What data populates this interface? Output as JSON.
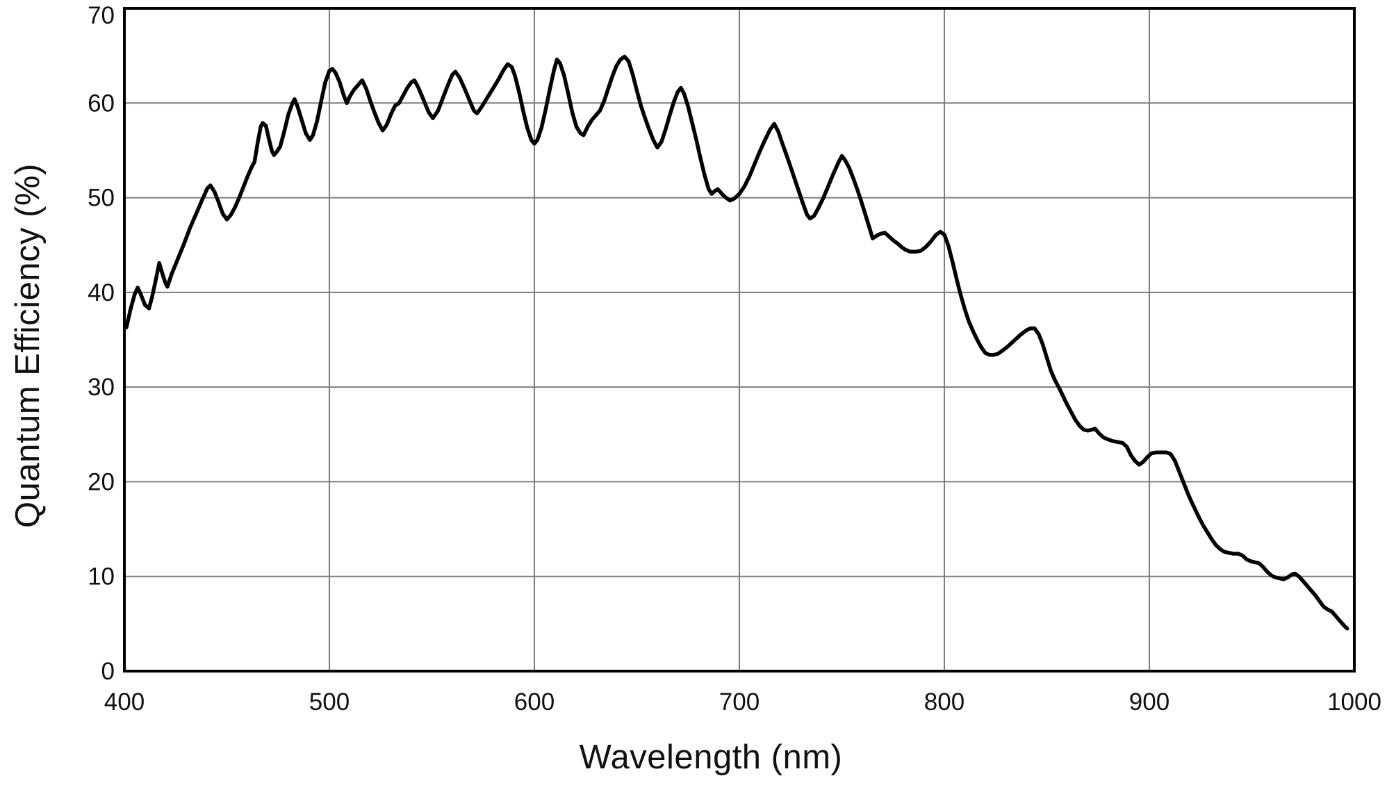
{
  "figure": {
    "background_color": "#ffffff",
    "frame_color": "#000000",
    "grid_color": "#7d7d7d",
    "curve_color": "#000000",
    "text_color": "#111111"
  },
  "chart_data": {
    "type": "line",
    "title": "",
    "xlabel": "Wavelength (nm)",
    "ylabel": "Quantum Efficiency (%)",
    "xlim": [
      400,
      1000
    ],
    "ylim": [
      0,
      70
    ],
    "x_ticks": [
      400,
      500,
      600,
      700,
      800,
      900,
      1000
    ],
    "y_ticks": [
      0,
      10,
      20,
      30,
      40,
      50,
      60,
      70
    ],
    "grid": true,
    "legend": "none",
    "series": [
      {
        "name": "Quantum Efficiency",
        "points": [
          [
            401,
            36.3
          ],
          [
            403,
            38.2
          ],
          [
            405,
            39.8
          ],
          [
            406.5,
            40.5
          ],
          [
            408,
            39.8
          ],
          [
            410,
            38.7
          ],
          [
            412,
            38.3
          ],
          [
            413.5,
            39.5
          ],
          [
            415.5,
            41.5
          ],
          [
            417,
            43.1
          ],
          [
            418.5,
            42.0
          ],
          [
            420,
            41.0
          ],
          [
            421,
            40.6
          ],
          [
            423,
            41.9
          ],
          [
            426,
            43.5
          ],
          [
            429,
            45.1
          ],
          [
            432,
            46.8
          ],
          [
            435,
            48.3
          ],
          [
            438,
            49.8
          ],
          [
            440.5,
            51.0
          ],
          [
            442,
            51.3
          ],
          [
            444,
            50.6
          ],
          [
            446,
            49.5
          ],
          [
            448,
            48.3
          ],
          [
            450,
            47.7
          ],
          [
            452,
            48.2
          ],
          [
            454,
            49.0
          ],
          [
            456,
            50.0
          ],
          [
            458,
            51.1
          ],
          [
            460,
            52.2
          ],
          [
            462,
            53.2
          ],
          [
            463.5,
            53.8
          ],
          [
            465,
            55.8
          ],
          [
            466.5,
            57.5
          ],
          [
            467.5,
            57.9
          ],
          [
            469,
            57.6
          ],
          [
            470.5,
            56.2
          ],
          [
            472,
            54.9
          ],
          [
            473,
            54.5
          ],
          [
            474.5,
            54.9
          ],
          [
            476,
            55.4
          ],
          [
            478,
            57.0
          ],
          [
            480,
            58.8
          ],
          [
            482,
            60.0
          ],
          [
            483,
            60.4
          ],
          [
            484.5,
            59.6
          ],
          [
            486.5,
            58.2
          ],
          [
            488.5,
            56.8
          ],
          [
            490.5,
            56.1
          ],
          [
            492,
            56.6
          ],
          [
            494,
            58.1
          ],
          [
            496,
            60.2
          ],
          [
            498,
            62.2
          ],
          [
            500,
            63.4
          ],
          [
            501.5,
            63.6
          ],
          [
            503,
            63.2
          ],
          [
            505,
            62.2
          ],
          [
            507,
            60.8
          ],
          [
            508.5,
            60.0
          ],
          [
            510,
            60.7
          ],
          [
            512,
            61.4
          ],
          [
            514,
            61.9
          ],
          [
            516,
            62.4
          ],
          [
            518,
            61.5
          ],
          [
            520,
            60.2
          ],
          [
            522,
            59.0
          ],
          [
            524,
            57.9
          ],
          [
            526,
            57.1
          ],
          [
            528,
            57.7
          ],
          [
            530,
            58.8
          ],
          [
            532,
            59.7
          ],
          [
            534,
            60.0
          ],
          [
            536,
            60.8
          ],
          [
            538,
            61.6
          ],
          [
            540,
            62.2
          ],
          [
            541.5,
            62.4
          ],
          [
            543.5,
            61.6
          ],
          [
            546,
            60.3
          ],
          [
            548.5,
            59.0
          ],
          [
            550.5,
            58.4
          ],
          [
            553,
            59.2
          ],
          [
            555.5,
            60.6
          ],
          [
            558,
            62.0
          ],
          [
            560,
            63.0
          ],
          [
            561.5,
            63.3
          ],
          [
            563.5,
            62.7
          ],
          [
            566,
            61.5
          ],
          [
            568.5,
            60.2
          ],
          [
            570.5,
            59.2
          ],
          [
            572,
            58.9
          ],
          [
            574,
            59.5
          ],
          [
            576,
            60.2
          ],
          [
            578,
            60.9
          ],
          [
            580,
            61.6
          ],
          [
            582.5,
            62.5
          ],
          [
            585,
            63.5
          ],
          [
            587,
            64.1
          ],
          [
            589,
            63.8
          ],
          [
            590.5,
            62.9
          ],
          [
            592.5,
            61.2
          ],
          [
            594.5,
            59.2
          ],
          [
            596.5,
            57.4
          ],
          [
            598.5,
            56.1
          ],
          [
            600,
            55.7
          ],
          [
            601.5,
            56.1
          ],
          [
            603.5,
            57.4
          ],
          [
            605.5,
            59.3
          ],
          [
            607.5,
            61.4
          ],
          [
            609.5,
            63.4
          ],
          [
            611,
            64.6
          ],
          [
            612.5,
            64.2
          ],
          [
            614.5,
            62.9
          ],
          [
            616.5,
            61.0
          ],
          [
            618.5,
            59.0
          ],
          [
            620.5,
            57.5
          ],
          [
            622.5,
            56.8
          ],
          [
            624,
            56.6
          ],
          [
            626,
            57.5
          ],
          [
            628,
            58.2
          ],
          [
            630,
            58.7
          ],
          [
            632,
            59.2
          ],
          [
            634,
            60.2
          ],
          [
            636,
            61.5
          ],
          [
            638,
            62.8
          ],
          [
            640,
            63.9
          ],
          [
            642,
            64.6
          ],
          [
            644,
            64.9
          ],
          [
            646,
            64.4
          ],
          [
            648,
            63.0
          ],
          [
            650,
            61.3
          ],
          [
            652,
            59.7
          ],
          [
            654,
            58.4
          ],
          [
            656,
            57.2
          ],
          [
            658,
            56.1
          ],
          [
            660,
            55.3
          ],
          [
            662,
            55.9
          ],
          [
            664,
            57.2
          ],
          [
            666,
            58.7
          ],
          [
            668,
            60.1
          ],
          [
            670,
            61.2
          ],
          [
            671.5,
            61.6
          ],
          [
            673,
            61.0
          ],
          [
            675,
            59.6
          ],
          [
            677,
            57.9
          ],
          [
            679,
            56.1
          ],
          [
            681,
            54.2
          ],
          [
            683,
            52.4
          ],
          [
            685,
            50.9
          ],
          [
            686.5,
            50.4
          ],
          [
            688,
            50.7
          ],
          [
            689.5,
            50.9
          ],
          [
            691.5,
            50.4
          ],
          [
            693.5,
            50.0
          ],
          [
            695.5,
            49.7
          ],
          [
            697.5,
            49.9
          ],
          [
            700,
            50.4
          ],
          [
            702.5,
            51.2
          ],
          [
            705,
            52.3
          ],
          [
            707.5,
            53.6
          ],
          [
            710,
            54.9
          ],
          [
            712.5,
            56.1
          ],
          [
            715,
            57.2
          ],
          [
            717,
            57.8
          ],
          [
            719,
            57.0
          ],
          [
            721,
            55.7
          ],
          [
            723.5,
            54.2
          ],
          [
            726,
            52.6
          ],
          [
            728.5,
            51.0
          ],
          [
            731,
            49.4
          ],
          [
            733,
            48.2
          ],
          [
            734.5,
            47.8
          ],
          [
            736.5,
            48.1
          ],
          [
            738.5,
            48.9
          ],
          [
            741,
            50.0
          ],
          [
            743.5,
            51.3
          ],
          [
            746,
            52.6
          ],
          [
            748.5,
            53.8
          ],
          [
            750,
            54.4
          ],
          [
            751.5,
            54.0
          ],
          [
            753.5,
            53.2
          ],
          [
            755.5,
            52.1
          ],
          [
            757.5,
            50.9
          ],
          [
            759.5,
            49.6
          ],
          [
            761.5,
            48.2
          ],
          [
            763.5,
            46.8
          ],
          [
            765,
            45.7
          ],
          [
            767,
            46.0
          ],
          [
            769,
            46.2
          ],
          [
            771,
            46.3
          ],
          [
            773,
            45.9
          ],
          [
            775,
            45.5
          ],
          [
            777,
            45.2
          ],
          [
            779,
            44.8
          ],
          [
            781,
            44.5
          ],
          [
            783.5,
            44.3
          ],
          [
            786,
            44.3
          ],
          [
            788.5,
            44.4
          ],
          [
            791,
            44.8
          ],
          [
            793.5,
            45.4
          ],
          [
            796,
            46.1
          ],
          [
            798,
            46.4
          ],
          [
            800,
            46.1
          ],
          [
            802,
            44.9
          ],
          [
            804,
            43.2
          ],
          [
            806,
            41.4
          ],
          [
            808,
            39.7
          ],
          [
            810,
            38.2
          ],
          [
            812,
            36.9
          ],
          [
            814,
            35.9
          ],
          [
            816,
            35.0
          ],
          [
            818,
            34.2
          ],
          [
            820,
            33.6
          ],
          [
            822,
            33.4
          ],
          [
            824,
            33.4
          ],
          [
            826,
            33.5
          ],
          [
            828,
            33.8
          ],
          [
            831,
            34.3
          ],
          [
            834,
            34.9
          ],
          [
            837,
            35.5
          ],
          [
            840,
            36.0
          ],
          [
            842,
            36.2
          ],
          [
            844,
            36.2
          ],
          [
            846,
            35.6
          ],
          [
            848,
            34.5
          ],
          [
            850,
            33.1
          ],
          [
            852,
            31.7
          ],
          [
            854,
            30.7
          ],
          [
            856,
            29.9
          ],
          [
            858,
            29.0
          ],
          [
            860,
            28.1
          ],
          [
            862,
            27.3
          ],
          [
            864,
            26.5
          ],
          [
            866,
            25.9
          ],
          [
            868,
            25.5
          ],
          [
            870,
            25.4
          ],
          [
            872,
            25.5
          ],
          [
            873.5,
            25.6
          ],
          [
            875.5,
            25.1
          ],
          [
            877.5,
            24.7
          ],
          [
            879.5,
            24.5
          ],
          [
            882,
            24.3
          ],
          [
            884.5,
            24.2
          ],
          [
            887,
            24.1
          ],
          [
            889,
            23.7
          ],
          [
            891,
            22.8
          ],
          [
            893,
            22.2
          ],
          [
            895,
            21.8
          ],
          [
            897,
            22.1
          ],
          [
            899,
            22.6
          ],
          [
            901,
            23.0
          ],
          [
            903.5,
            23.1
          ],
          [
            906,
            23.1
          ],
          [
            908.5,
            23.1
          ],
          [
            910.5,
            22.9
          ],
          [
            912.5,
            22.2
          ],
          [
            914.5,
            21.1
          ],
          [
            916.5,
            20.0
          ],
          [
            918.5,
            18.9
          ],
          [
            920.5,
            17.9
          ],
          [
            922.5,
            17.0
          ],
          [
            924.5,
            16.1
          ],
          [
            926.5,
            15.3
          ],
          [
            928.5,
            14.6
          ],
          [
            930.5,
            13.9
          ],
          [
            932.5,
            13.3
          ],
          [
            934.5,
            12.9
          ],
          [
            936.5,
            12.6
          ],
          [
            938.5,
            12.5
          ],
          [
            941,
            12.4
          ],
          [
            943.5,
            12.4
          ],
          [
            945.5,
            12.2
          ],
          [
            947.5,
            11.8
          ],
          [
            949.5,
            11.6
          ],
          [
            951.5,
            11.5
          ],
          [
            953.5,
            11.4
          ],
          [
            955.5,
            11.0
          ],
          [
            957.5,
            10.5
          ],
          [
            959.5,
            10.1
          ],
          [
            961.5,
            9.9
          ],
          [
            963.5,
            9.8
          ],
          [
            965.5,
            9.7
          ],
          [
            967.5,
            9.9
          ],
          [
            969.5,
            10.2
          ],
          [
            971,
            10.3
          ],
          [
            973,
            10.0
          ],
          [
            975,
            9.5
          ],
          [
            977,
            9.0
          ],
          [
            979,
            8.5
          ],
          [
            981,
            8.0
          ],
          [
            983,
            7.4
          ],
          [
            985,
            6.8
          ],
          [
            987,
            6.5
          ],
          [
            989,
            6.3
          ],
          [
            991,
            5.8
          ],
          [
            993,
            5.3
          ],
          [
            995,
            4.8
          ],
          [
            996.5,
            4.5
          ]
        ]
      }
    ]
  }
}
